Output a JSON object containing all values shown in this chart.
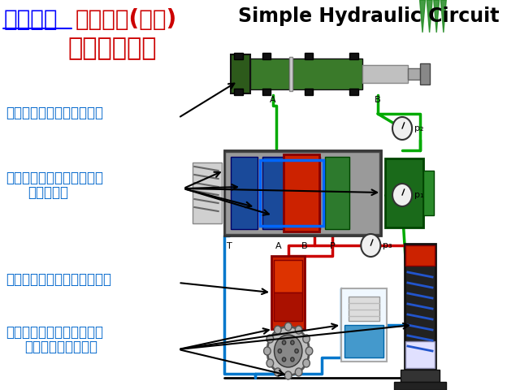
{
  "bg_color": "#f5f5f5",
  "title1_blue": "传统开式",
  "title1_red": "液压系统(阀控)",
  "title2": "的基本组成：",
  "english_title": "Simple Hydraulic Circuit",
  "label1": "执行元件（液压缸、马达）",
  "label2a": "控制元件（方向、压力、流",
  "label2b": "量控制阀）",
  "label3": "动力源（泵、电机或发动机）",
  "label4a": "附件（油箱、过滤器、冷却",
  "label4b": "器、蓄能器、管件）",
  "port_A": "A",
  "port_B": "B",
  "port_T": "T",
  "port_A2": "A",
  "port_B2": "B",
  "port_P": "P",
  "p1": "p₁",
  "p2": "p₂",
  "p3": "p₃"
}
